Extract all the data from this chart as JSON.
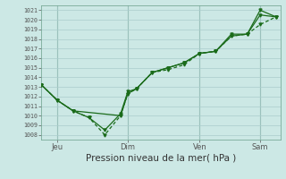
{
  "xlabel": "Pression niveau de la mer( hPa )",
  "bg_color": "#cce8e5",
  "grid_color": "#aacccc",
  "line_color": "#1a6b1a",
  "ylim": [
    1007.5,
    1021.5
  ],
  "yticks": [
    1008,
    1009,
    1010,
    1011,
    1012,
    1013,
    1014,
    1015,
    1016,
    1017,
    1018,
    1019,
    1020,
    1021
  ],
  "xlim": [
    0.0,
    8.3
  ],
  "xtick_labels": [
    "Jeu",
    "Dim",
    "Ven",
    "Sam"
  ],
  "xtick_positions": [
    0.55,
    3.0,
    5.5,
    7.6
  ],
  "vline_positions": [
    0.55,
    3.0,
    5.5,
    7.6
  ],
  "series1_x": [
    0.0,
    0.55,
    1.1,
    1.65,
    2.2,
    2.75,
    3.0,
    3.3,
    3.85,
    4.4,
    4.95,
    5.5,
    6.05,
    6.6,
    7.15,
    7.6,
    8.15
  ],
  "series1_y": [
    1013.2,
    1011.6,
    1010.5,
    1009.8,
    1008.5,
    1010.2,
    1012.5,
    1012.8,
    1014.5,
    1015.0,
    1015.5,
    1016.5,
    1016.7,
    1018.3,
    1018.5,
    1020.5,
    1020.3
  ],
  "series2_x": [
    0.0,
    0.55,
    1.1,
    1.65,
    2.2,
    2.75,
    3.0,
    3.3,
    3.85,
    4.4,
    4.95,
    5.5,
    6.05,
    6.6,
    7.15,
    7.6,
    8.15
  ],
  "series2_y": [
    1013.2,
    1011.6,
    1010.5,
    1009.8,
    1008.0,
    1010.0,
    1012.3,
    1012.8,
    1014.5,
    1014.8,
    1015.3,
    1016.5,
    1016.7,
    1018.3,
    1018.5,
    1019.5,
    1020.3
  ],
  "series3_x": [
    0.0,
    0.55,
    1.1,
    2.75,
    3.0,
    3.3,
    3.85,
    4.4,
    4.95,
    5.5,
    6.05,
    6.6,
    7.15,
    7.6,
    8.15
  ],
  "series3_y": [
    1013.2,
    1011.6,
    1010.5,
    1010.0,
    1012.3,
    1012.8,
    1014.5,
    1015.0,
    1015.5,
    1016.5,
    1016.7,
    1018.5,
    1018.5,
    1021.0,
    1020.3
  ]
}
